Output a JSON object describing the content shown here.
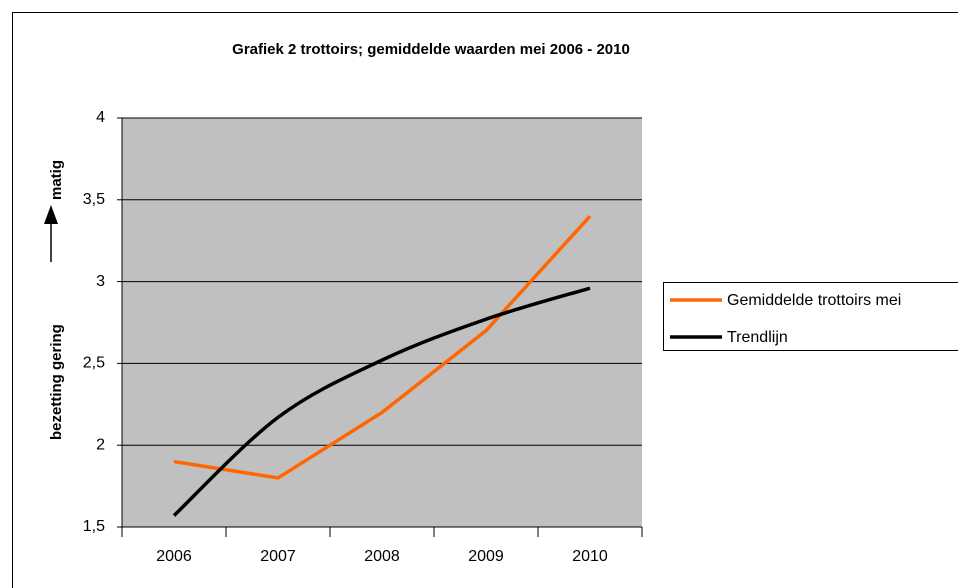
{
  "chart_data": {
    "type": "line",
    "title": "Grafiek 2 trottoirs; gemiddelde waarden  mei 2006 - 2010",
    "y_label_low": "bezetting gering",
    "y_label_high": "matig",
    "categories": [
      "2006",
      "2007",
      "2008",
      "2009",
      "2010"
    ],
    "series": [
      {
        "name": "Gemiddelde trottoirs mei",
        "color": "#ff6600",
        "values": [
          1.9,
          1.8,
          2.2,
          2.7,
          3.4
        ]
      },
      {
        "name": "Trendlijn",
        "color": "#000000",
        "values": [
          1.57,
          2.17,
          2.52,
          2.77,
          2.96
        ],
        "smooth": true
      }
    ],
    "ylim": [
      1.5,
      4
    ],
    "yticks": [
      {
        "value": 1.5,
        "label": "1,5"
      },
      2,
      {
        "value": 2.5,
        "label": "2,5"
      },
      3,
      {
        "value": 3.5,
        "label": "3,5"
      },
      4
    ],
    "grid": true,
    "legend": "right"
  }
}
